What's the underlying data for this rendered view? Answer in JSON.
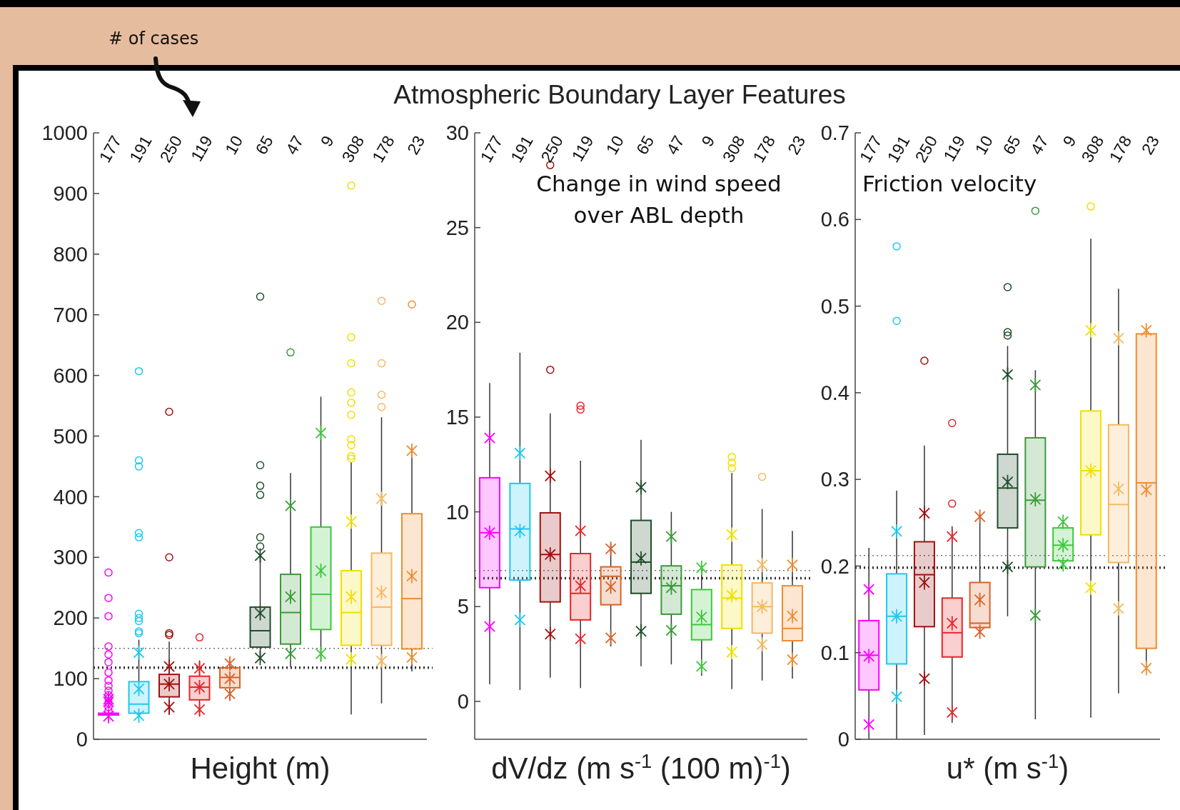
{
  "chart_data": [
    {
      "type": "box",
      "xlabel": "Height (m)",
      "annotations": [
        "# of cases"
      ],
      "categories": [
        "177",
        "191",
        "250",
        "119",
        "10",
        "65",
        "47",
        "9",
        "308",
        "178",
        "23"
      ],
      "colors": [
        "#ff00ff",
        "#1ec8f0",
        "#a01010",
        "#e8252a",
        "#d9622b",
        "#1f4d2a",
        "#3a9a3a",
        "#3cc83c",
        "#f0e000",
        "#f5b860",
        "#f08c30"
      ],
      "ylim": [
        0,
        1000
      ],
      "yticks": [
        0,
        100,
        200,
        300,
        400,
        500,
        600,
        700,
        800,
        900,
        1000
      ],
      "boxes": [
        {
          "low": 38,
          "q1": 40,
          "median": 41,
          "q3": 43,
          "high": 45,
          "mean": 62,
          "outliers": [
            47,
            53,
            60,
            67,
            73,
            80,
            88,
            97,
            110,
            127,
            140,
            153,
            203,
            233,
            275
          ]
        },
        {
          "low": 39,
          "q1": 43,
          "median": 58,
          "q3": 95,
          "high": 164,
          "mean": 83,
          "outliers": [
            175,
            178,
            195,
            200,
            207,
            333,
            340,
            450,
            460,
            607
          ]
        },
        {
          "low": 40,
          "q1": 70,
          "median": 91,
          "q3": 107,
          "high": 161,
          "mean": 91,
          "outliers": [
            172,
            175,
            300,
            540
          ]
        },
        {
          "low": 39,
          "q1": 65,
          "median": 86,
          "q3": 104,
          "high": 130,
          "mean": 86,
          "outliers": [
            168
          ]
        },
        {
          "low": 65,
          "q1": 85,
          "median": 102,
          "q3": 118,
          "high": 127,
          "mean": 100
        },
        {
          "low": 132,
          "q1": 152,
          "median": 179,
          "q3": 218,
          "high": 303,
          "mean": 208,
          "outliers": [
            318,
            333,
            403,
            418,
            452,
            730
          ]
        },
        {
          "low": 119,
          "q1": 157,
          "median": 209,
          "q3": 272,
          "high": 439,
          "mean": 235,
          "outliers": [
            638
          ]
        },
        {
          "low": 128,
          "q1": 181,
          "median": 239,
          "q3": 350,
          "high": 565,
          "mean": 278
        },
        {
          "low": 41,
          "q1": 155,
          "median": 209,
          "q3": 278,
          "high": 457,
          "mean": 235,
          "outliers": [
            463,
            467,
            485,
            495,
            535,
            555,
            572,
            620,
            663,
            913
          ]
        },
        {
          "low": 59,
          "q1": 155,
          "median": 218,
          "q3": 307,
          "high": 531,
          "mean": 242,
          "outliers": [
            548,
            568,
            620,
            723
          ]
        },
        {
          "low": 112,
          "q1": 149,
          "median": 232,
          "q3": 372,
          "high": 482,
          "mean": 269,
          "outliers": [
            717
          ]
        }
      ],
      "series": [
        {
          "type": "scatter",
          "marker": "cross",
          "x": [
            "177",
            "191",
            "250",
            "119",
            "10",
            "65",
            "47",
            "9",
            "308",
            "178",
            "23"
          ],
          "values": [
            38,
            39,
            53,
            49,
            75,
            134,
            141,
            141,
            132,
            129,
            135
          ],
          "colors": [
            "#ff00ff",
            "#1ec8f0",
            "#a01010",
            "#e8252a",
            "#d9622b",
            "#1f4d2a",
            "#3a9a3a",
            "#3cc83c",
            "#f0e000",
            "#f5b860",
            "#f08c30"
          ]
        },
        {
          "type": "scatter",
          "marker": "cross",
          "x": [
            "177",
            "191",
            "250",
            "119",
            "10",
            "65",
            "47",
            "9",
            "308",
            "178",
            "23"
          ],
          "values": [
            66,
            143,
            120,
            117,
            125,
            303,
            385,
            505,
            359,
            397,
            476
          ],
          "colors": [
            "#ff00ff",
            "#1ec8f0",
            "#a01010",
            "#e8252a",
            "#d9622b",
            "#1f4d2a",
            "#3a9a3a",
            "#3cc83c",
            "#f0e000",
            "#f5b860",
            "#f08c30"
          ]
        }
      ],
      "ref_lines": [
        {
          "axis": "y",
          "value": 150,
          "color": "#777777",
          "line_style": "dotted"
        },
        {
          "axis": "y",
          "value": 118,
          "color": "#333333",
          "line_style": "dotted"
        }
      ]
    },
    {
      "type": "box",
      "title": "Atmospheric Boundary Layer Features",
      "xlabel": "dV/dz (m s$^{-1}$ (100 m)$^{-1}$)",
      "annotations": [
        "Change in wind speed over ABL depth"
      ],
      "categories": [
        "177",
        "191",
        "250",
        "119",
        "10",
        "65",
        "47",
        "9",
        "308",
        "178",
        "23"
      ],
      "colors": [
        "#ff00ff",
        "#1ec8f0",
        "#a01010",
        "#e8252a",
        "#d9622b",
        "#1f4d2a",
        "#3a9a3a",
        "#3cc83c",
        "#f0e000",
        "#f5b860",
        "#f08c30"
      ],
      "ylim": [
        -2,
        30
      ],
      "yticks": [
        0,
        5,
        10,
        15,
        20,
        25,
        30
      ],
      "boxes": [
        {
          "low": 0.9,
          "q1": 6.0,
          "median": 8.9,
          "q3": 11.8,
          "high": 16.8,
          "mean": 8.9
        },
        {
          "low": 0.6,
          "q1": 6.4,
          "median": 9.1,
          "q3": 11.5,
          "high": 18.4,
          "mean": 9.0
        },
        {
          "low": 1.25,
          "q1": 5.25,
          "median": 7.75,
          "q3": 9.95,
          "high": 15.2,
          "mean": 7.75,
          "outliers": [
            17.5,
            28.3
          ]
        },
        {
          "low": 0.7,
          "q1": 4.3,
          "median": 5.7,
          "q3": 7.8,
          "high": 12.7,
          "mean": 6.1,
          "outliers": [
            15.4,
            15.6
          ]
        },
        {
          "low": 2.9,
          "q1": 5.1,
          "median": 6.6,
          "q3": 7.1,
          "high": 8.3,
          "mean": 6.05
        },
        {
          "low": 1.85,
          "q1": 5.7,
          "median": 7.35,
          "q3": 9.55,
          "high": 13.8,
          "mean": 7.55
        },
        {
          "low": 1.95,
          "q1": 4.6,
          "median": 6.1,
          "q3": 7.15,
          "high": 10.0,
          "mean": 6.0
        },
        {
          "low": 1.35,
          "q1": 3.25,
          "median": 4.05,
          "q3": 5.9,
          "high": 7.15,
          "mean": 4.45
        },
        {
          "low": 0.65,
          "q1": 3.85,
          "median": 5.45,
          "q3": 7.2,
          "high": 12.05,
          "mean": 5.6,
          "outliers": [
            12.3,
            12.6,
            12.9
          ]
        },
        {
          "low": 1.1,
          "q1": 3.6,
          "median": 5.0,
          "q3": 6.25,
          "high": 10.15,
          "mean": 5.0,
          "outliers": [
            11.85
          ]
        },
        {
          "low": 1.2,
          "q1": 3.2,
          "median": 3.85,
          "q3": 6.1,
          "high": 9.0,
          "mean": 4.5
        }
      ],
      "series": [
        {
          "type": "scatter",
          "marker": "cross",
          "x": [
            "177",
            "191",
            "250",
            "119",
            "10",
            "65",
            "47",
            "9",
            "308",
            "178",
            "23"
          ],
          "values": [
            3.95,
            4.3,
            3.55,
            3.3,
            3.35,
            3.7,
            3.75,
            1.85,
            2.6,
            3.0,
            2.2
          ],
          "colors": [
            "#ff00ff",
            "#1ec8f0",
            "#a01010",
            "#e8252a",
            "#d9622b",
            "#1f4d2a",
            "#3a9a3a",
            "#3cc83c",
            "#f0e000",
            "#f5b860",
            "#f08c30"
          ]
        },
        {
          "type": "scatter",
          "marker": "cross",
          "x": [
            "177",
            "191",
            "250",
            "119",
            "10",
            "65",
            "47",
            "9",
            "308",
            "178",
            "23"
          ],
          "values": [
            13.9,
            13.1,
            11.9,
            9.0,
            8.05,
            11.3,
            8.7,
            7.05,
            8.8,
            7.2,
            7.2
          ],
          "colors": [
            "#ff00ff",
            "#1ec8f0",
            "#a01010",
            "#e8252a",
            "#d9622b",
            "#1f4d2a",
            "#3a9a3a",
            "#3cc83c",
            "#f0e000",
            "#f5b860",
            "#f08c30"
          ]
        }
      ],
      "ref_lines": [
        {
          "axis": "y",
          "value": 6.9,
          "color": "#777777",
          "line_style": "dotted"
        },
        {
          "axis": "y",
          "value": 6.5,
          "color": "#333333",
          "line_style": "dotted"
        }
      ]
    },
    {
      "type": "box",
      "xlabel": "u* (m s$^{-1}$)",
      "annotations": [
        "Friction velocity"
      ],
      "categories": [
        "177",
        "191",
        "250",
        "119",
        "10",
        "65",
        "47",
        "9",
        "308",
        "178",
        "23"
      ],
      "colors": [
        "#ff00ff",
        "#1ec8f0",
        "#a01010",
        "#e8252a",
        "#d9622b",
        "#1f4d2a",
        "#3a9a3a",
        "#3cc83c",
        "#f0e000",
        "#f5b860",
        "#f08c30"
      ],
      "ylim": [
        0,
        0.7
      ],
      "yticks": [
        0,
        0.1,
        0.2,
        0.3,
        0.4,
        0.5,
        0.6,
        0.7
      ],
      "boxes": [
        {
          "low": 0,
          "q1": 0.057,
          "median": 0.097,
          "q3": 0.137,
          "high": 0.221,
          "mean": 0.096
        },
        {
          "low": 0,
          "q1": 0.087,
          "median": 0.142,
          "q3": 0.191,
          "high": 0.287,
          "mean": 0.142,
          "outliers": [
            0.483,
            0.569
          ]
        },
        {
          "low": 0.005,
          "q1": 0.13,
          "median": 0.19,
          "q3": 0.228,
          "high": 0.339,
          "mean": 0.181,
          "outliers": [
            0.437
          ]
        },
        {
          "low": 0.019,
          "q1": 0.095,
          "median": 0.123,
          "q3": 0.163,
          "high": 0.246,
          "mean": 0.134,
          "outliers": [
            0.272,
            0.365
          ]
        },
        {
          "low": 0.124,
          "q1": 0.129,
          "median": 0.134,
          "q3": 0.181,
          "high": 0.257,
          "mean": 0.161
        },
        {
          "low": 0.142,
          "q1": 0.244,
          "median": 0.29,
          "q3": 0.329,
          "high": 0.454,
          "mean": 0.297,
          "outliers": [
            0.466,
            0.47,
            0.522
          ]
        },
        {
          "low": 0.023,
          "q1": 0.199,
          "median": 0.276,
          "q3": 0.348,
          "high": 0.426,
          "mean": 0.277,
          "outliers": [
            0.61
          ]
        },
        {
          "low": 0.2,
          "q1": 0.206,
          "median": 0.224,
          "q3": 0.244,
          "high": 0.252,
          "mean": 0.224
        },
        {
          "low": 0.025,
          "q1": 0.236,
          "median": 0.31,
          "q3": 0.379,
          "high": 0.578,
          "mean": 0.31,
          "outliers": [
            0.615
          ]
        },
        {
          "low": 0.053,
          "q1": 0.204,
          "median": 0.271,
          "q3": 0.363,
          "high": 0.52,
          "mean": 0.289
        },
        {
          "low": 0.082,
          "q1": 0.105,
          "median": 0.296,
          "q3": 0.468,
          "high": 0.472,
          "mean": 0.288
        }
      ],
      "series": [
        {
          "type": "scatter",
          "marker": "cross",
          "x": [
            "177",
            "191",
            "250",
            "119",
            "10",
            "65",
            "47",
            "9",
            "308",
            "178",
            "23"
          ],
          "values": [
            0.017,
            0.049,
            0.07,
            0.031,
            0.124,
            0.199,
            0.143,
            0.202,
            0.175,
            0.151,
            0.082
          ],
          "colors": [
            "#ff00ff",
            "#1ec8f0",
            "#a01010",
            "#e8252a",
            "#d9622b",
            "#1f4d2a",
            "#3a9a3a",
            "#3cc83c",
            "#f0e000",
            "#f5b860",
            "#f08c30"
          ]
        },
        {
          "type": "scatter",
          "marker": "cross",
          "x": [
            "177",
            "191",
            "250",
            "119",
            "10",
            "65",
            "47",
            "9",
            "308",
            "178",
            "23"
          ],
          "values": [
            0.173,
            0.24,
            0.261,
            0.234,
            0.257,
            0.421,
            0.409,
            0.251,
            0.472,
            0.463,
            0.472
          ],
          "colors": [
            "#ff00ff",
            "#1ec8f0",
            "#a01010",
            "#e8252a",
            "#d9622b",
            "#1f4d2a",
            "#3a9a3a",
            "#3cc83c",
            "#f0e000",
            "#f5b860",
            "#f08c30"
          ]
        }
      ],
      "ref_lines": [
        {
          "axis": "y",
          "value": 0.212,
          "color": "#777777",
          "line_style": "dotted"
        },
        {
          "axis": "y",
          "value": 0.198,
          "color": "#333333",
          "line_style": "dotted"
        }
      ]
    }
  ]
}
